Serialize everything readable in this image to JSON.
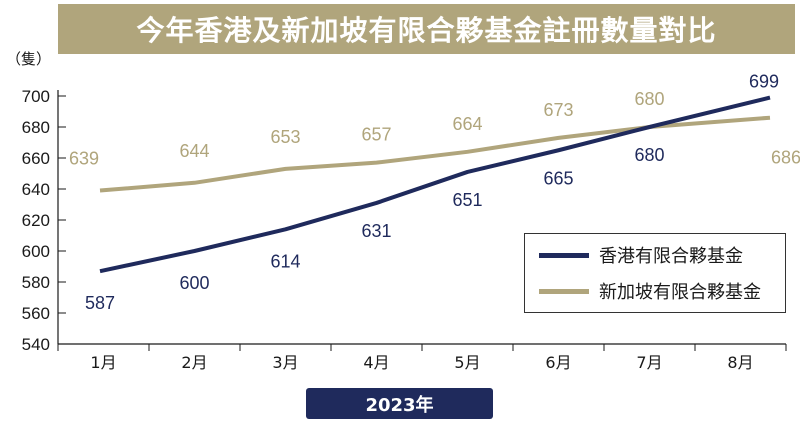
{
  "title": "今年香港及新加坡有限合夥基金註冊數量對比",
  "badge": "2023年",
  "chart_data": {
    "type": "line",
    "title": "今年香港及新加坡有限合夥基金註冊數量對比",
    "xlabel": "2023年",
    "ylabel": "（隻）",
    "categories": [
      "1月",
      "2月",
      "3月",
      "4月",
      "5月",
      "6月",
      "7月",
      "8月"
    ],
    "ylim": [
      540,
      710
    ],
    "yticks": [
      540,
      560,
      580,
      600,
      620,
      640,
      660,
      680,
      700
    ],
    "grid": false,
    "legend_position": "bottom-right",
    "series": [
      {
        "name": "香港有限合夥基金",
        "color": "#1f2a5c",
        "values": [
          587,
          600,
          614,
          631,
          651,
          665,
          680,
          699
        ]
      },
      {
        "name": "新加坡有限合夥基金",
        "color": "#b0a57c",
        "values": [
          639,
          644,
          653,
          657,
          664,
          673,
          680,
          686
        ]
      }
    ]
  }
}
